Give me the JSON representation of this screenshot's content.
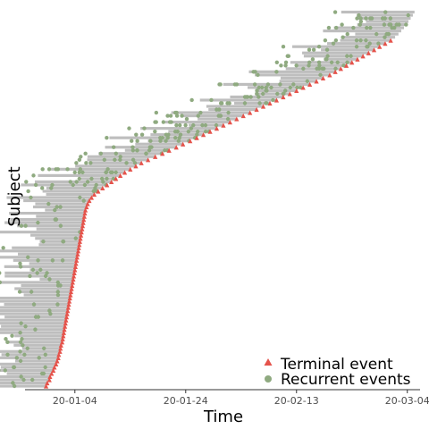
{
  "chart_data": {
    "type": "scatter",
    "subtype": "event-swimmer-plot",
    "title": "",
    "xlabel": "Time",
    "ylabel": "Subject",
    "x_unit": "day-of-year-2020",
    "x_tick_values": [
      4,
      24,
      44,
      64
    ],
    "x_tick_labels": [
      "20-01-04",
      "20-01-24",
      "20-02-13",
      "20-03-04"
    ],
    "xlim": [
      -5,
      66.3
    ],
    "n_subjects": 120,
    "subjects": {
      "row_offset": 0.5,
      "end_times": [
        -1.2,
        -1.0,
        -0.6,
        -0.5,
        -0.2,
        0.1,
        0.3,
        0.6,
        0.8,
        1.0,
        1.1,
        1.3,
        1.4,
        1.5,
        1.7,
        1.8,
        1.9,
        2.0,
        2.1,
        2.2,
        2.3,
        2.4,
        2.5,
        2.6,
        2.7,
        2.8,
        2.9,
        3.0,
        3.1,
        3.2,
        3.3,
        3.4,
        3.5,
        3.6,
        3.7,
        3.8,
        3.9,
        4.0,
        4.1,
        4.2,
        4.3,
        4.4,
        4.5,
        4.6,
        4.7,
        4.8,
        4.9,
        5.0,
        5.1,
        5.2,
        5.3,
        5.4,
        5.5,
        5.6,
        5.7,
        5.8,
        5.9,
        6.1,
        6.3,
        6.6,
        7.0,
        7.5,
        8.2,
        9.0,
        9.8,
        10.6,
        11.4,
        12.2,
        13.0,
        14.0,
        15.0,
        16.0,
        17.2,
        18.5,
        19.8,
        21.0,
        22.3,
        23.5,
        24.8,
        26.0,
        27.2,
        28.4,
        29.6,
        30.8,
        32.0,
        33.2,
        34.4,
        35.6,
        36.8,
        38.0,
        39.2,
        40.4,
        41.6,
        42.8,
        44.0,
        45.2,
        46.4,
        47.6,
        48.8,
        50.0,
        51.0,
        52.0,
        53.0,
        54.0,
        55.0,
        56.0,
        57.0,
        58.0,
        59.0,
        60.0,
        61.0,
        61.8,
        62.4,
        62.9,
        63.4,
        63.8,
        64.2,
        64.6,
        65.0,
        65.3
      ],
      "terminal_event_rows": [
        0,
        1,
        2,
        3,
        4,
        5,
        6,
        7,
        8,
        9,
        10,
        11,
        12,
        13,
        14,
        15,
        16,
        17,
        18,
        19,
        20,
        21,
        22,
        23,
        24,
        25,
        26,
        27,
        28,
        29,
        30,
        31,
        32,
        33,
        34,
        35,
        36,
        37,
        38,
        39,
        40,
        41,
        42,
        43,
        44,
        45,
        46,
        47,
        48,
        49,
        50,
        51,
        52,
        53,
        54,
        55,
        56,
        57,
        58,
        59,
        60,
        61,
        62,
        63,
        64,
        65,
        66,
        67,
        68,
        69,
        70,
        71,
        72,
        73,
        74,
        75,
        76,
        77,
        78,
        79,
        80,
        81,
        82,
        83,
        84,
        85,
        86,
        87,
        88,
        89,
        90,
        91,
        92,
        93,
        94,
        95,
        96,
        97,
        98,
        99,
        100,
        101,
        102,
        103,
        104,
        105,
        106,
        107,
        108,
        109,
        110
      ]
    },
    "recurrent_events_note": "Each subject shows its own scattered recurrent event times; the dots run up to each subject's end time.",
    "legend": {
      "position": "bottom-right",
      "entries": [
        {
          "label": "Terminal event",
          "symbol": "triangle",
          "color": "#e5534b"
        },
        {
          "label": "Recurrent events",
          "symbol": "circle",
          "color": "#8faa80"
        }
      ]
    },
    "colors": {
      "bar": "#bebebe",
      "terminal": "#e5534b",
      "recurrent": "#8faa80",
      "axis": "#333333"
    }
  }
}
